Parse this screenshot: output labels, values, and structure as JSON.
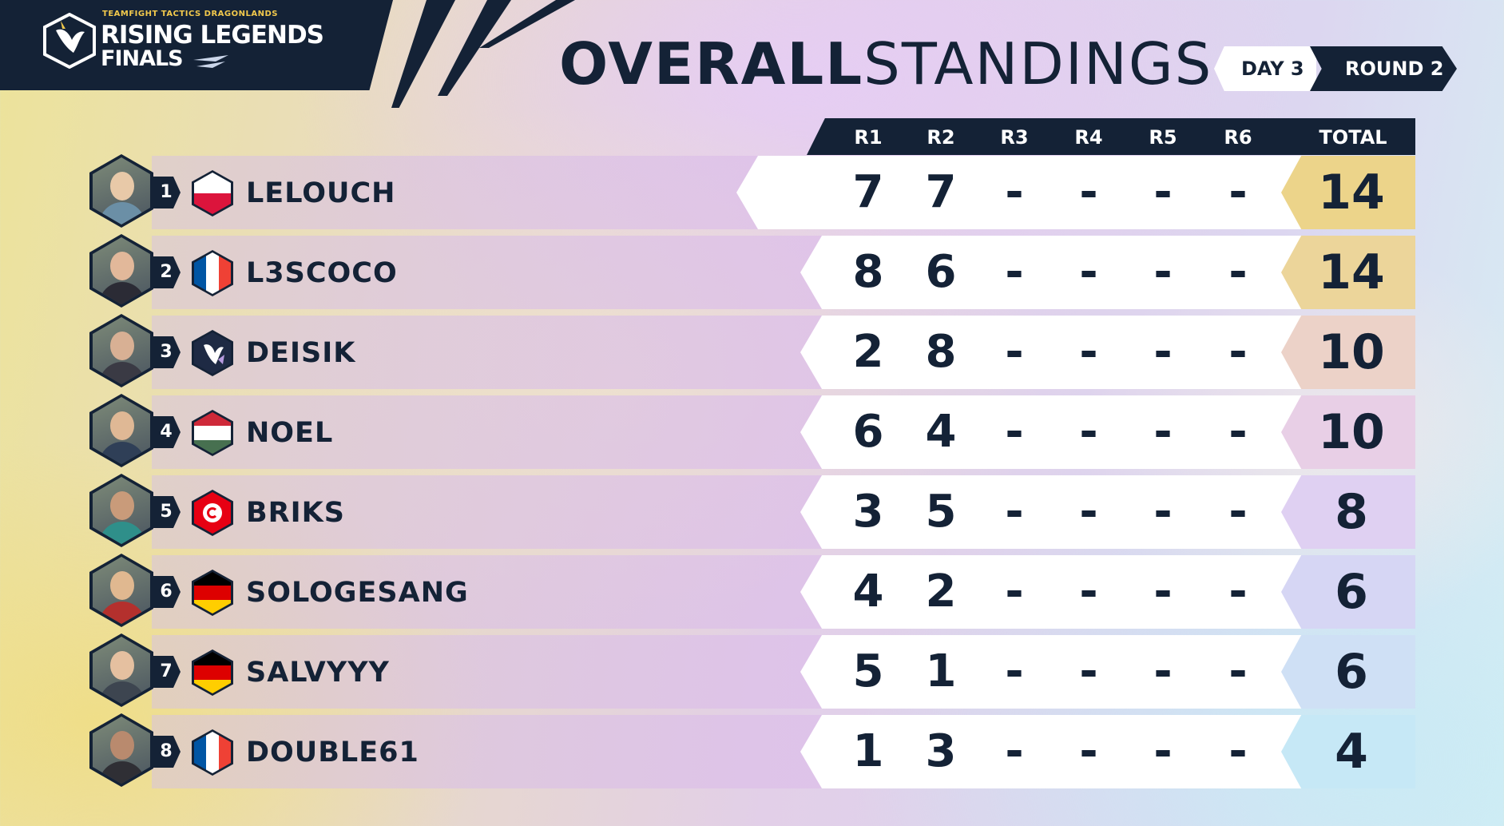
{
  "logo": {
    "small_text": "TEAMFIGHT TACTICS DRAGONLANDS",
    "line1": "RISING LEGENDS",
    "line2": "FINALS",
    "emblem_icon": "dragon-crest-icon"
  },
  "title": {
    "bold": "OVERALL",
    "light": "STANDINGS"
  },
  "day_label": "DAY 3",
  "round_label": "ROUND 2",
  "columns": [
    "R1",
    "R2",
    "R3",
    "R4",
    "R5",
    "R6",
    "TOTAL"
  ],
  "rows": [
    {
      "rank": "1",
      "name": "LELOUCH",
      "flag": "poland-flag-icon",
      "scores": [
        "7",
        "7",
        "-",
        "-",
        "-",
        "-"
      ],
      "total": "14",
      "total_color": "#ecd48a"
    },
    {
      "rank": "2",
      "name": "L3SCOCO",
      "flag": "france-flag-icon",
      "scores": [
        "8",
        "6",
        "-",
        "-",
        "-",
        "-"
      ],
      "total": "14",
      "total_color": "#ecd59a"
    },
    {
      "rank": "3",
      "name": "DEISIK",
      "flag": "team-crest-icon",
      "scores": [
        "2",
        "8",
        "-",
        "-",
        "-",
        "-"
      ],
      "total": "10",
      "total_color": "#ecd2c8"
    },
    {
      "rank": "4",
      "name": "NOEL",
      "flag": "hungary-flag-icon",
      "scores": [
        "6",
        "4",
        "-",
        "-",
        "-",
        "-"
      ],
      "total": "10",
      "total_color": "#e8cfe6"
    },
    {
      "rank": "5",
      "name": "BRIKS",
      "flag": "tunisia-flag-icon",
      "scores": [
        "3",
        "5",
        "-",
        "-",
        "-",
        "-"
      ],
      "total": "8",
      "total_color": "#dfd0f2"
    },
    {
      "rank": "6",
      "name": "SOLOGESANG",
      "flag": "germany-flag-icon",
      "scores": [
        "4",
        "2",
        "-",
        "-",
        "-",
        "-"
      ],
      "total": "6",
      "total_color": "#d6d6f4"
    },
    {
      "rank": "7",
      "name": "SALVYYY",
      "flag": "germany-flag-icon",
      "scores": [
        "5",
        "1",
        "-",
        "-",
        "-",
        "-"
      ],
      "total": "6",
      "total_color": "#cfe0f5"
    },
    {
      "rank": "8",
      "name": "DOUBLE61",
      "flag": "france-flag-icon",
      "scores": [
        "1",
        "3",
        "-",
        "-",
        "-",
        "-"
      ],
      "total": "4",
      "total_color": "#c6e8f6"
    }
  ],
  "colors": {
    "navy": "#142236",
    "accent_gold": "#f2c94c"
  }
}
